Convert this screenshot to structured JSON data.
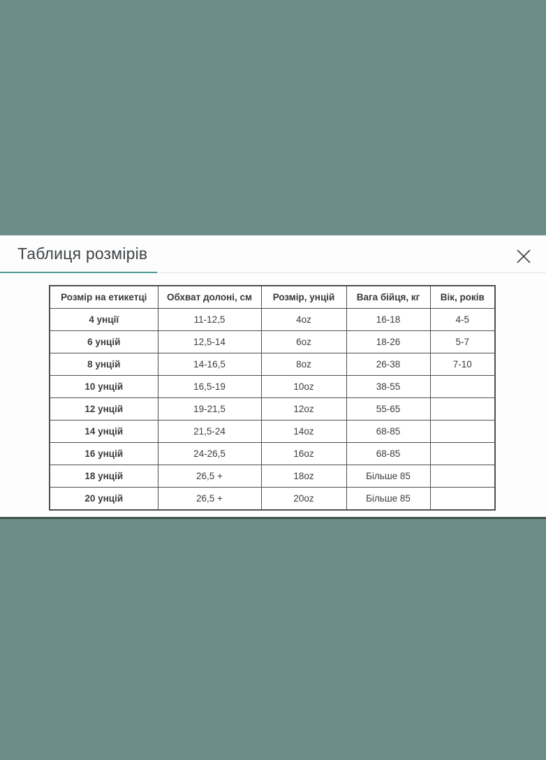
{
  "colors": {
    "page_background": "#6b8e88",
    "accent_teal": "#4a9b91",
    "table_border": "#4e4e4e",
    "modal_background": "#fdfdfd"
  },
  "modal": {
    "title": "Таблиця розмірів"
  },
  "table": {
    "headers": [
      "Розмір на етикетці",
      "Обхват долоні, см",
      "Розмір, унцій",
      "Вага бійця, кг",
      "Вік, років"
    ],
    "rows": [
      [
        "4 унції",
        "11-12,5",
        "4oz",
        "16-18",
        "4-5"
      ],
      [
        "6 унцій",
        "12,5-14",
        "6oz",
        "18-26",
        "5-7"
      ],
      [
        "8 унцій",
        "14-16,5",
        "8oz",
        "26-38",
        "7-10"
      ],
      [
        "10 унцій",
        "16,5-19",
        "10oz",
        "38-55",
        ""
      ],
      [
        "12 унцій",
        "19-21,5",
        "12oz",
        "55-65",
        ""
      ],
      [
        "14 унцій",
        "21,5-24",
        "14oz",
        "68-85",
        ""
      ],
      [
        "16 унцій",
        "24-26,5",
        "16oz",
        "68-85",
        ""
      ],
      [
        "18 унцій",
        "26,5 +",
        "18oz",
        "Більше 85",
        ""
      ],
      [
        "20 унцій",
        "26,5 +",
        "20oz",
        "Більше 85",
        ""
      ]
    ]
  }
}
